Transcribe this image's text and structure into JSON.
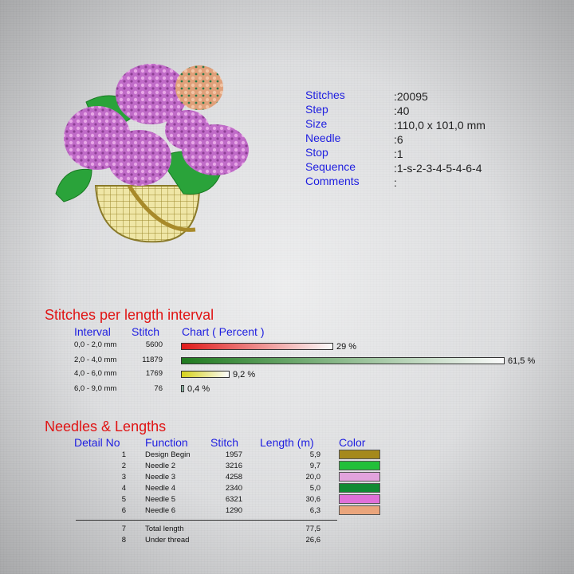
{
  "info": {
    "labels": [
      "Stitches",
      "Step",
      "Size",
      "Needle",
      "Stop",
      "Sequence",
      "Comments"
    ],
    "values": [
      ":20095",
      ":40",
      ":110,0 x 101,0 mm",
      ":6",
      ":1",
      ":1-s-2-3-4-5-4-6-4",
      ":"
    ]
  },
  "intervals": {
    "title": "Stitches per length interval",
    "headers": {
      "interval": "Interval",
      "stitch": "Stitch",
      "chart": "Chart ( Percent )"
    },
    "rows": [
      {
        "interval": "0,0 - 2,0 mm",
        "stitch": "5600",
        "percent_label": "29 %",
        "percent": 29,
        "color": "#e01a1a"
      },
      {
        "interval": "2,0 - 4,0 mm",
        "stitch": "11879",
        "percent_label": "61,5 %",
        "percent": 61.5,
        "color": "#1f7a1f"
      },
      {
        "interval": "4,0 - 6,0 mm",
        "stitch": "1769",
        "percent_label": "9,2 %",
        "percent": 9.2,
        "color": "#d6d21a"
      },
      {
        "interval": "6,0 - 9,0 mm",
        "stitch": "76",
        "percent_label": "0,4 %",
        "percent": 0.4,
        "color": "#2a7a5a"
      }
    ]
  },
  "needles": {
    "title": "Needles & Lengths",
    "headers": {
      "detail": "Detail No",
      "function": "Function",
      "stitch": "Stitch",
      "length": "Length (m)",
      "color": "Color"
    },
    "rows": [
      {
        "no": "1",
        "function": "Design Begin",
        "stitch": "1957",
        "length": "5,9",
        "color": "#a5891c"
      },
      {
        "no": "2",
        "function": "Needle 2",
        "stitch": "3216",
        "length": "9,7",
        "color": "#22c03a"
      },
      {
        "no": "3",
        "function": "Needle 3",
        "stitch": "4258",
        "length": "20,0",
        "color": "#e2a3dd"
      },
      {
        "no": "4",
        "function": "Needle 4",
        "stitch": "2340",
        "length": "5,0",
        "color": "#118a33"
      },
      {
        "no": "5",
        "function": "Needle 5",
        "stitch": "6321",
        "length": "30,6",
        "color": "#e070d8"
      },
      {
        "no": "6",
        "function": "Needle 6",
        "stitch": "1290",
        "length": "6,3",
        "color": "#eaa57c"
      }
    ],
    "totals": [
      {
        "no": "7",
        "function": "Total length",
        "length": "77,5"
      },
      {
        "no": "8",
        "function": "Under thread",
        "length": "26,6"
      }
    ]
  }
}
